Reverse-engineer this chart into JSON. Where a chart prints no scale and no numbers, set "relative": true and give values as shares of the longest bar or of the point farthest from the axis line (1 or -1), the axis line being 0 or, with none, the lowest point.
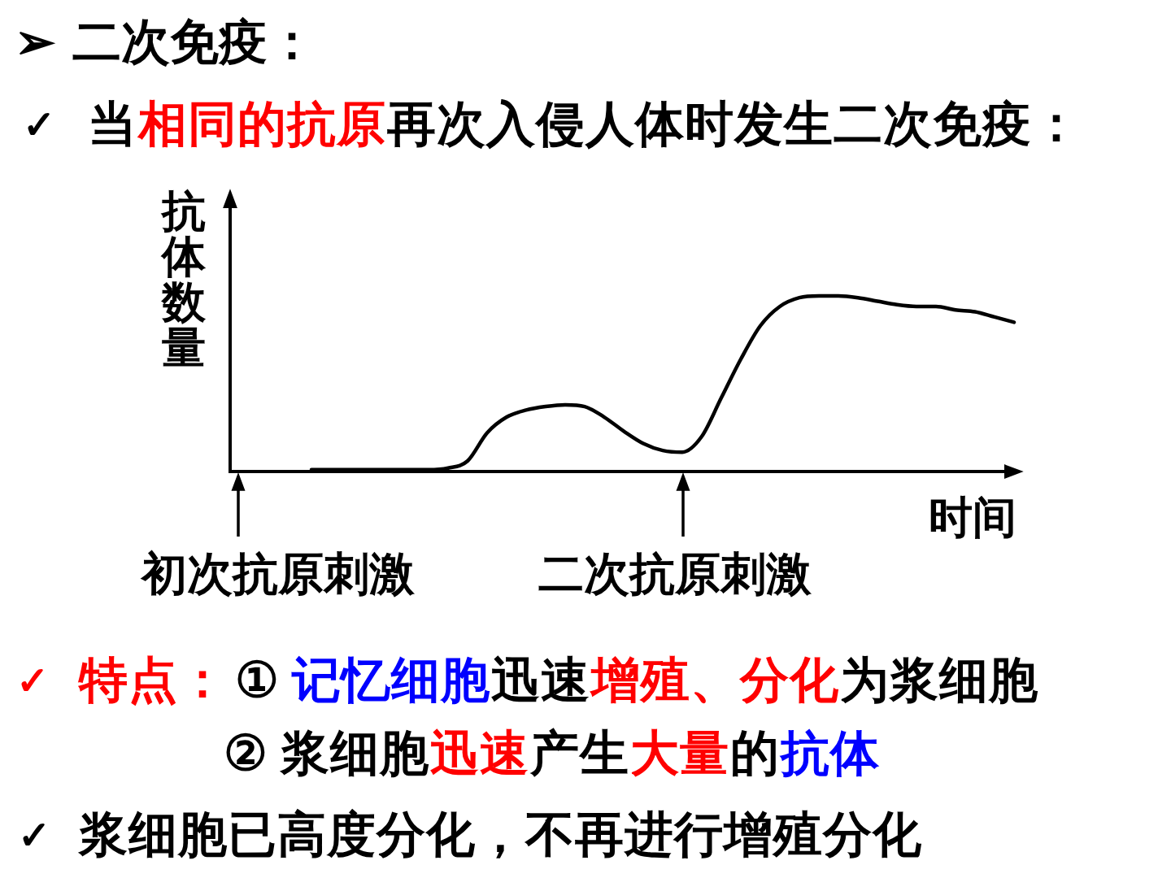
{
  "chart_data": {
    "type": "line",
    "relative": true,
    "title": "➢ 二次免疫：",
    "xlabel": "时间",
    "ylabel": "抗体数量",
    "categories": [
      null,
      null,
      null,
      null,
      null,
      null,
      null,
      null,
      null,
      null,
      null,
      null,
      null,
      null,
      null,
      null,
      null,
      null,
      null,
      null,
      null,
      null,
      null,
      null,
      null,
      null,
      null,
      null,
      null,
      null,
      null,
      null,
      null,
      null,
      null,
      null,
      null,
      null,
      null,
      null,
      null
    ],
    "series": [
      {
        "color": "#000000",
        "values": [
          null,
          null,
          null,
          null,
          0.01,
          0.01,
          0.01,
          0.01,
          0.01,
          0.01,
          0.01,
          0.02,
          0.06,
          0.22,
          0.31,
          0.35,
          0.37,
          0.38,
          0.37,
          0.31,
          0.23,
          0.16,
          0.12,
          0.11,
          0.2,
          0.42,
          0.64,
          0.83,
          0.94,
          0.99,
          1.0,
          1.0,
          0.99,
          0.97,
          0.95,
          0.94,
          0.94,
          0.92,
          0.91,
          0.88,
          0.85
        ]
      }
    ],
    "annotations": [
      "初次抗原刺激",
      "二次抗原刺激",
      "✓",
      "当",
      "相同的抗原",
      "再次入侵人体时发生二次免疫：",
      "✓",
      "特点：",
      "①",
      "记忆细胞",
      "迅速",
      "增殖、分化",
      "为浆细胞",
      "②",
      "浆细胞",
      "迅速",
      "产生",
      "大量",
      "的",
      "抗体",
      "✓",
      "浆细胞已高度分化，不再进行增殖分化"
    ]
  }
}
